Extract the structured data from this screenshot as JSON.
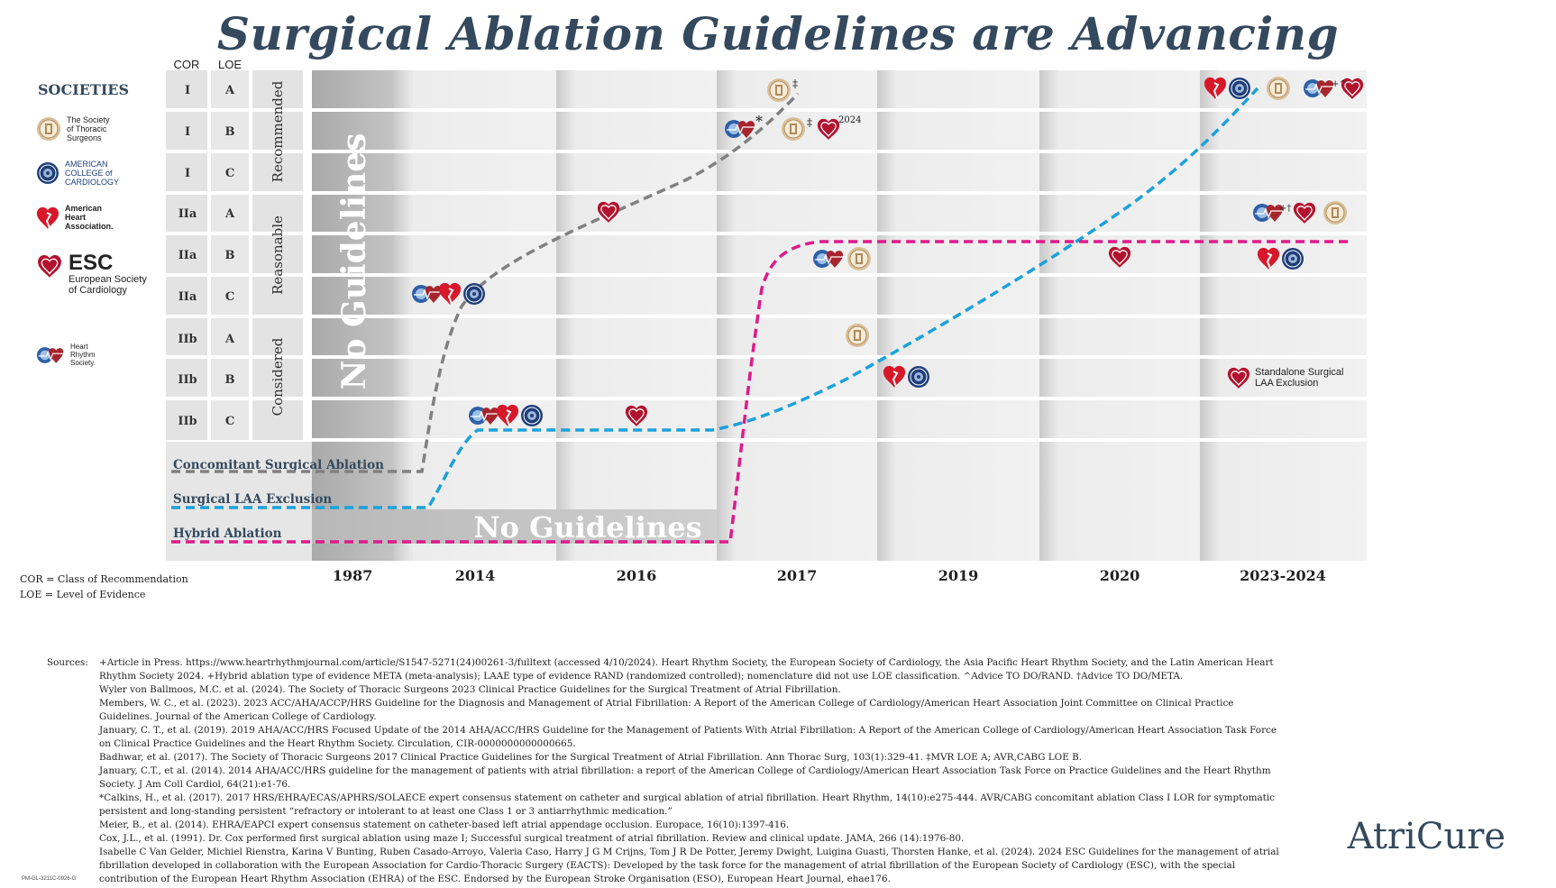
{
  "title": "Surgical Ablation Guidelines are Advancing",
  "headers": {
    "cor": "COR",
    "loe": "LOE"
  },
  "rows": [
    {
      "cor": "I",
      "loe": "A"
    },
    {
      "cor": "I",
      "loe": "B"
    },
    {
      "cor": "I",
      "loe": "C"
    },
    {
      "cor": "IIa",
      "loe": "A"
    },
    {
      "cor": "IIa",
      "loe": "B"
    },
    {
      "cor": "IIa",
      "loe": "C"
    },
    {
      "cor": "IIb",
      "loe": "A"
    },
    {
      "cor": "IIb",
      "loe": "B"
    },
    {
      "cor": "IIb",
      "loe": "C"
    }
  ],
  "groups": [
    "Recommended",
    "Reasonable",
    "Considered"
  ],
  "years": [
    "1987",
    "2014",
    "2016",
    "2017",
    "2019",
    "2020",
    "2023-2024"
  ],
  "no_guidelines": "No Guidelines",
  "lines": [
    {
      "name": "Concomitant Surgical Ablation",
      "color": "#808080"
    },
    {
      "name": "Surgical LAA Exclusion",
      "color": "#1ba1dc"
    },
    {
      "name": "Hybrid Ablation",
      "color": "#de1a8a"
    }
  ],
  "societies": {
    "heading": "SOCIETIES",
    "sts": "The Society of Thoracic Surgeons",
    "acc": "AMERICAN COLLEGE of CARDIOLOGY",
    "aha": "American Heart Association.",
    "esc_abbr": "ESC",
    "esc": "European Society of Cardiology",
    "hrs": "Heart Rhythm Society."
  },
  "legend_notes": [
    "COR = Class of Recommendation",
    "LOE = Level of Evidence"
  ],
  "standalone_note": "Standalone Surgical LAA Exclusion",
  "marks": {
    "dagger": "‡",
    "asterisk": "*",
    "year_2024": "2024",
    "plus_caret": "+^",
    "plus_dagger": "+†"
  },
  "colors": {
    "navy": "#34495e",
    "gray_line": "#808080",
    "blue_line": "#1ba1dc",
    "pink_line": "#de1a8a",
    "aha_red": "#d7182a",
    "esc_red": "#b3122e",
    "sts_tan": "#c9a67a"
  },
  "sources_label": "Sources:",
  "sources": [
    "+Article in Press. https://www.heartrhythmjournal.com/article/S1547-5271(24)00261-3/fulltext (accessed 4/10/2024). Heart Rhythm Society, the European Society of Cardiology, the Asia Pacific Heart Rhythm Society, and the Latin American Heart Rhythm Society 2024. +Hybrid ablation type of evidence META (meta-analysis); LAAE type of evidence RAND (randomized controlled); nomenclature did not use LOE classification. ^Advice TO DO/RAND. †Advice TO DO/META.",
    "Wyler von Ballmoos, M.C. et al. (2024). The Society of Thoracic Surgeons 2023 Clinical Practice Guidelines for the Surgical Treatment of Atrial Fibrillation.",
    "Members, W. C., et al. (2023). 2023 ACC/AHA/ACCP/HRS Guideline for the Diagnosis and Management of Atrial Fibrillation: A Report of the American College of Cardiology/American Heart Association Joint Committee on Clinical Practice Guidelines. Journal of the American College of Cardiology.",
    "January, C. T., et al. (2019). 2019 AHA/ACC/HRS Focused Update of the 2014 AHA/ACC/HRS Guideline for the Management of Patients With Atrial Fibrillation: A Report of the American College of Cardiology/American Heart Association Task Force on Clinical Practice Guidelines and the Heart Rhythm Society. Circulation, CIR-0000000000000665.",
    "Badhwar, et al. (2017). The Society of Thoracic Surgeons 2017 Clinical Practice Guidelines for the Surgical Treatment of Atrial Fibrillation. Ann Thorac Surg, 103(1):329-41. ‡MVR LOE A; AVR,CABG LOE B.",
    "January, C.T., et al. (2014). 2014 AHA/ACC/HRS guideline for the management of patients with atrial fibrillation: a report of the American College of Cardiology/American Heart Association Task Force on Practice Guidelines and the Heart Rhythm Society. J Am Coll Cardiol, 64(21):e1-76.",
    "*Calkins, H., et al. (2017). 2017 HRS/EHRA/ECAS/APHRS/SOLAECE expert consensus statement on catheter and surgical ablation of atrial fibrillation. Heart Rhythm, 14(10):e275-444. AVR/CABG concomitant ablation Class I LOR for symptomatic persistent and long-standing persistent “refractory or intolerant to at least one Class 1 or 3 antiarrhythmic medication.”",
    "Meier, B., et al. (2014). EHRA/EAPCI expert consensus statement on catheter-based left atrial appendage occlusion. Europace, 16(10):1397-416.",
    "Cox, J.L., et al. (1991). Dr. Cox performed first surgical ablation using maze I; Successful surgical treatment of atrial fibrillation. Review and clinical update. JAMA, 266 (14):1976-80.",
    "Isabelle C Van Gelder, Michiel Rienstra, Karina V Bunting, Ruben Casado-Arroyo, Valeria Caso, Harry J G M Crijns, Tom J R De Potter, Jeremy Dwight, Luigina Guasti, Thorsten Hanke, et al. (2024). 2024 ESC Guidelines for the management of atrial fibrillation developed in collaboration with the European Association for Cardio-Thoracic Surgery (EACTS): Developed by the task force for the management of atrial fibrillation of the European Society of Cardiology (ESC), with the special contribution of the European Heart Rhythm Association (EHRA) of the ESC. Endorsed by the European Stroke Organisation (ESO), European Heart Journal, ehae176."
  ],
  "brand": "AtriCure",
  "pm_code": "PM-GL-3211C-0926-G"
}
